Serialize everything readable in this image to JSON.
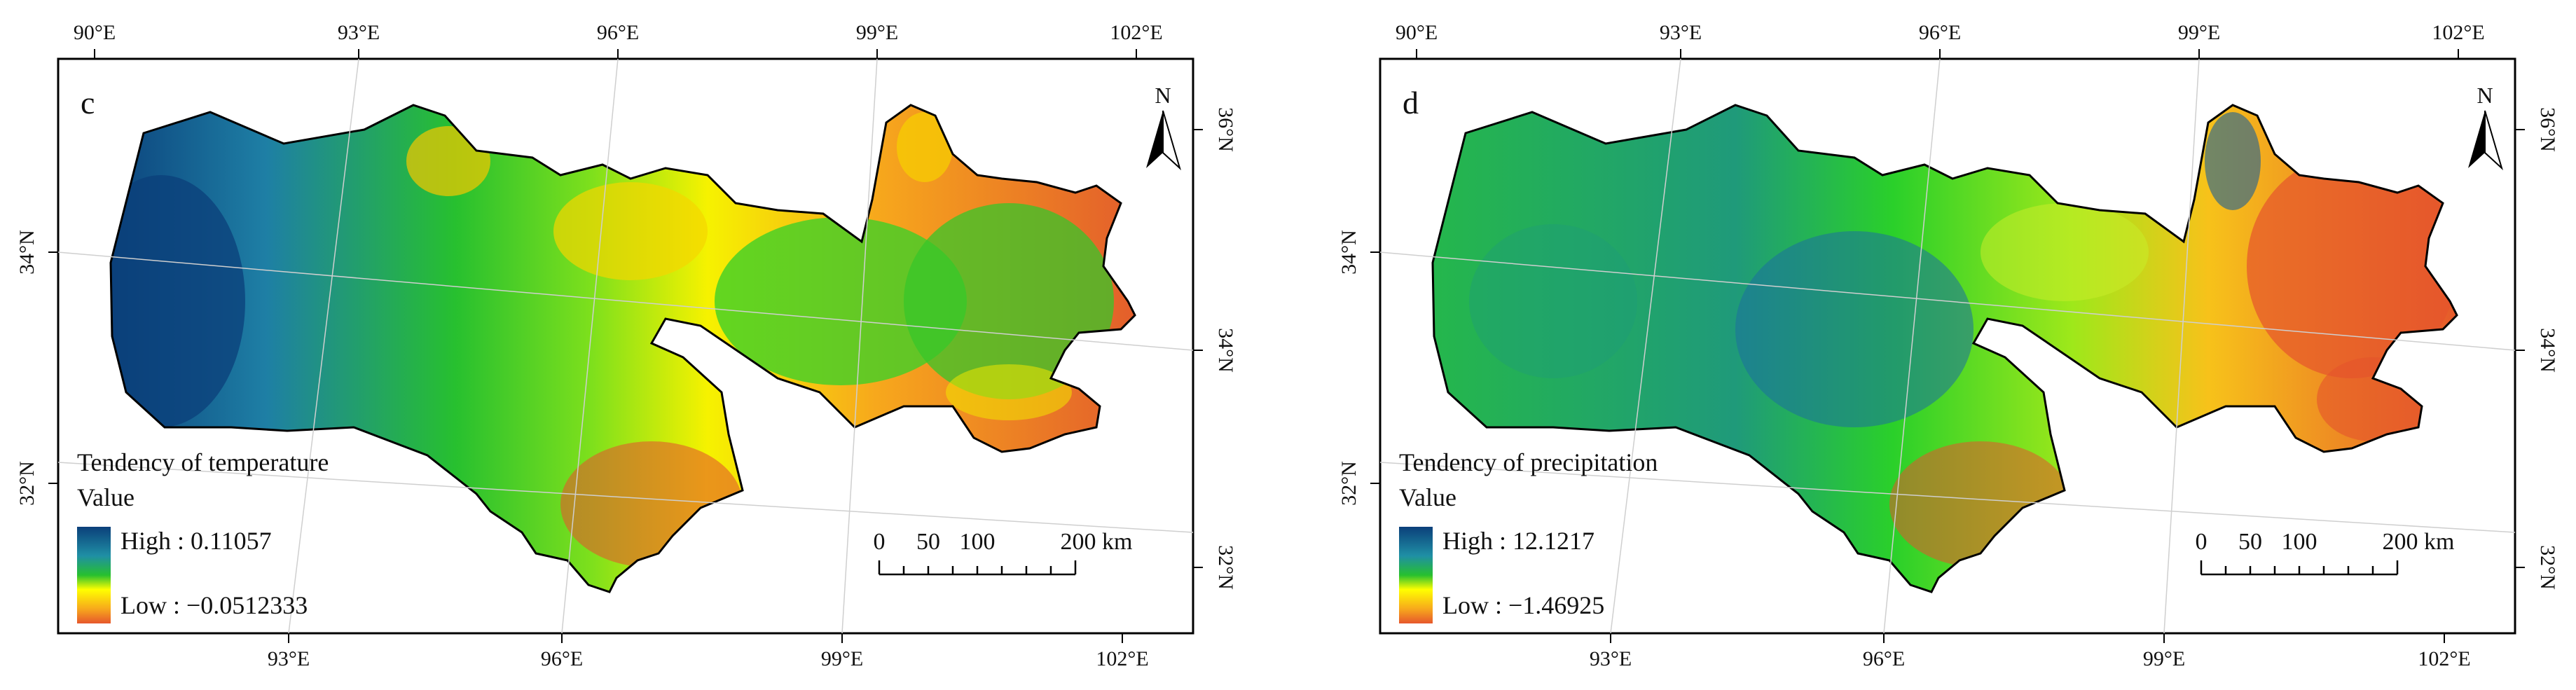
{
  "panels": [
    {
      "id": "c",
      "label": "c",
      "north": "N",
      "top_ticks": [
        "90°E",
        "93°E",
        "96°E",
        "99°E",
        "102°E"
      ],
      "bottom_ticks": [
        "93°E",
        "96°E",
        "99°E",
        "102°E"
      ],
      "left_ticks": [
        "34°N",
        "32°N"
      ],
      "right_ticks": [
        "36°N",
        "34°N",
        "32°N"
      ],
      "legend": {
        "title": "Tendency of temperature",
        "sub": "Value",
        "high": "High : 0.11057",
        "low": "Low : −0.0512333",
        "colors": [
          "#0b3f7a",
          "#1f8fa5",
          "#27c02f",
          "#6be01a",
          "#ffff00",
          "#f7a81c",
          "#e6572c"
        ]
      },
      "scale": {
        "labels": [
          "0",
          "50",
          "100",
          "200 km"
        ]
      }
    },
    {
      "id": "d",
      "label": "d",
      "north": "N",
      "top_ticks": [
        "90°E",
        "93°E",
        "96°E",
        "99°E",
        "102°E"
      ],
      "bottom_ticks": [
        "93°E",
        "96°E",
        "99°E",
        "102°E"
      ],
      "left_ticks": [
        "34°N",
        "32°N"
      ],
      "right_ticks": [
        "36°N",
        "34°N",
        "32°N"
      ],
      "legend": {
        "title": "Tendency of precipitation",
        "sub": "Value",
        "high": "High : 12.1217",
        "low": "Low : −1.46925",
        "colors": [
          "#0b3f7a",
          "#1f8fa5",
          "#27c02f",
          "#6be01a",
          "#ffff00",
          "#f7a81c",
          "#e6572c"
        ]
      },
      "scale": {
        "labels": [
          "0",
          "50",
          "100",
          "200 km"
        ]
      }
    }
  ]
}
